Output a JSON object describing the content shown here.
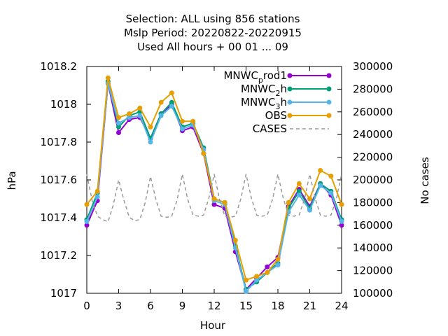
{
  "chart_data": {
    "type": "line",
    "title_lines": [
      "Selection: ALL using   856 stations",
      "Mslp   Period: 20220822-20220915",
      "Used  All hours  + 00 01 ... 09"
    ],
    "xlabel": "Hour",
    "ylabel": "hPa",
    "y2label": "No cases",
    "xlim": [
      0,
      24
    ],
    "ylim": [
      1017,
      1018.2
    ],
    "y2lim": [
      100000,
      300000
    ],
    "x_ticks": [
      0,
      3,
      6,
      9,
      12,
      15,
      18,
      21,
      24
    ],
    "y_ticks": [
      1017,
      1017.2,
      1017.4,
      1017.6,
      1017.8,
      1018,
      1018.2
    ],
    "y_tick_labels": [
      "1017",
      "1017.2",
      "1017.4",
      "1017.6",
      "1017.8",
      "1018",
      "1018.2"
    ],
    "y2_ticks": [
      100000,
      120000,
      140000,
      160000,
      180000,
      200000,
      220000,
      240000,
      260000,
      280000,
      300000
    ],
    "grid": false,
    "legend_position": "top-right",
    "x": [
      0,
      1,
      2,
      3,
      4,
      5,
      6,
      7,
      8,
      9,
      10,
      11,
      12,
      13,
      14,
      15,
      16,
      17,
      18,
      19,
      20,
      21,
      22,
      23,
      24
    ],
    "series": [
      {
        "name": "MNWC_prod1",
        "legend_main": "MNWC",
        "legend_sub": "p",
        "legend_rest": "rod1",
        "color": "#9400d3",
        "marker": "circle",
        "axis": "y1",
        "values": [
          1017.36,
          1017.49,
          1018.11,
          1017.85,
          1017.92,
          1017.93,
          1017.82,
          1017.95,
          1018.0,
          1017.86,
          1017.88,
          1017.74,
          1017.47,
          1017.45,
          1017.22,
          1017.02,
          1017.08,
          1017.14,
          1017.19,
          1017.46,
          1017.55,
          1017.46,
          1017.58,
          1017.52,
          1017.36
        ]
      },
      {
        "name": "MNWC_2h",
        "legend_main": "MNWC",
        "legend_sub": "2",
        "legend_rest": "h",
        "color": "#009e73",
        "marker": "circle",
        "axis": "y1",
        "values": [
          1017.39,
          1017.53,
          1018.12,
          1017.88,
          1017.94,
          1017.96,
          1017.82,
          1017.95,
          1018.01,
          1017.88,
          1017.9,
          1017.77,
          1017.5,
          1017.48,
          1017.25,
          1017.02,
          1017.06,
          1017.11,
          1017.16,
          1017.45,
          1017.54,
          1017.45,
          1017.58,
          1017.54,
          1017.39
        ]
      },
      {
        "name": "MNWC_3h",
        "legend_main": "MNWC",
        "legend_sub": "3",
        "legend_rest": "h",
        "color": "#56b4e9",
        "marker": "circle",
        "axis": "y1",
        "values": [
          1017.38,
          1017.51,
          1018.11,
          1017.9,
          1017.93,
          1017.94,
          1017.8,
          1017.94,
          1017.99,
          1017.87,
          1017.89,
          1017.76,
          1017.49,
          1017.47,
          1017.24,
          1017.01,
          1017.07,
          1017.11,
          1017.15,
          1017.43,
          1017.52,
          1017.44,
          1017.57,
          1017.53,
          1017.38
        ]
      },
      {
        "name": "OBS",
        "legend_main": "OBS",
        "legend_sub": "",
        "legend_rest": "",
        "color": "#e69f00",
        "marker": "circle",
        "axis": "y1",
        "values": [
          1017.47,
          1017.54,
          1018.14,
          1017.93,
          1017.95,
          1017.98,
          1017.88,
          1018.01,
          1018.06,
          1017.91,
          1017.91,
          1017.74,
          1017.5,
          1017.48,
          1017.28,
          1017.07,
          1017.09,
          1017.11,
          1017.18,
          1017.48,
          1017.58,
          1017.5,
          1017.65,
          1017.62,
          1017.47
        ]
      },
      {
        "name": "CASES",
        "legend_main": "CASES",
        "legend_sub": "",
        "legend_rest": "",
        "color": "#999999",
        "style": "dashed",
        "axis": "y2",
        "x": [
          0,
          0.5,
          1,
          1.5,
          2,
          2.5,
          3,
          3.5,
          4,
          4.5,
          5,
          5.5,
          6,
          6.5,
          7,
          7.5,
          8,
          8.5,
          9,
          9.5,
          10,
          10.5,
          11,
          11.5,
          12,
          12.5,
          13,
          13.5,
          14,
          14.5,
          15,
          15.5,
          16,
          16.5,
          17,
          17.5,
          18,
          18.5,
          19,
          19.5,
          20,
          20.5,
          21,
          21.5,
          22,
          22.5,
          23,
          23.5,
          24
        ],
        "values": [
          205000,
          182000,
          168000,
          165000,
          163000,
          178000,
          200000,
          182000,
          167000,
          164000,
          165000,
          180000,
          203000,
          183000,
          168000,
          167000,
          168000,
          182000,
          205000,
          183000,
          169000,
          168000,
          169000,
          184000,
          205000,
          183000,
          168000,
          167000,
          168000,
          183000,
          205000,
          184000,
          169000,
          168000,
          169000,
          183000,
          205000,
          184000,
          169000,
          168000,
          169000,
          183000,
          205000,
          184000,
          169000,
          168000,
          169000,
          183000,
          205000
        ]
      }
    ]
  }
}
